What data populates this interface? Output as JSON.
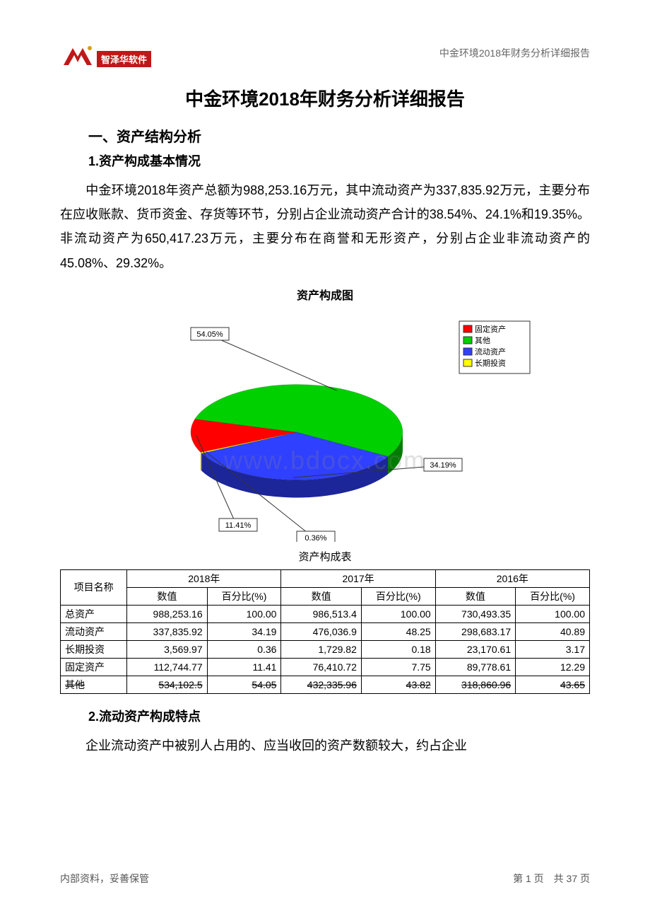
{
  "header": {
    "logo_text": "智泽华软件",
    "logo_colors": {
      "red": "#c01818",
      "gold": "#d4a017"
    },
    "right_text": "中金环境2018年财务分析详细报告"
  },
  "doc_title": "中金环境2018年财务分析详细报告",
  "section1": {
    "h1": "一、资产结构分析",
    "h2_1": "1.资产构成基本情况",
    "para1": "中金环境2018年资产总额为988,253.16万元，其中流动资产为337,835.92万元，主要分布在应收账款、货币资金、存货等环节，分别占企业流动资产合计的38.54%、24.1%和19.35%。非流动资产为650,417.23万元，主要分布在商誉和无形资产，分别占企业非流动资产的45.08%、29.32%。",
    "h2_2": "2.流动资产构成特点",
    "para2": "企业流动资产中被别人占用的、应当收回的资产数额较大，约占企业"
  },
  "chart": {
    "title": "资产构成图",
    "type": "pie",
    "background_color": "#ffffff",
    "legend_border": "#333333",
    "slices": [
      {
        "label": "固定资产",
        "value": 11.41,
        "color": "#ff0000",
        "callout": "11.41%"
      },
      {
        "label": "其他",
        "value": 54.05,
        "color": "#00d000",
        "callout": "54.05%"
      },
      {
        "label": "流动资产",
        "value": 34.19,
        "color": "#3040ff",
        "callout": "34.19%"
      },
      {
        "label": "长期投资",
        "value": 0.36,
        "color": "#ffff00",
        "callout": "0.36%"
      }
    ],
    "legend_items": [
      {
        "label": "固定资产",
        "color": "#ff0000"
      },
      {
        "label": "其他",
        "color": "#00d000"
      },
      {
        "label": "流动资产",
        "color": "#3040ff"
      },
      {
        "label": "长期投资",
        "color": "#ffff00"
      }
    ],
    "tilt": 0.45,
    "radius": 150,
    "thickness": 25,
    "label_box": {
      "fill": "#ffffff",
      "stroke": "#333333"
    }
  },
  "table": {
    "caption": "资产构成表",
    "year_headers": [
      "2018年",
      "2017年",
      "2016年"
    ],
    "sub_headers": [
      "数值",
      "百分比(%)"
    ],
    "row_header": "项目名称",
    "rows": [
      {
        "name": "总资产",
        "cells": [
          "988,253.16",
          "100.00",
          "986,513.4",
          "100.00",
          "730,493.35",
          "100.00"
        ],
        "strike": false
      },
      {
        "name": "流动资产",
        "cells": [
          "337,835.92",
          "34.19",
          "476,036.9",
          "48.25",
          "298,683.17",
          "40.89"
        ],
        "strike": false
      },
      {
        "name": "长期投资",
        "cells": [
          "3,569.97",
          "0.36",
          "1,729.82",
          "0.18",
          "23,170.61",
          "3.17"
        ],
        "strike": false
      },
      {
        "name": "固定资产",
        "cells": [
          "112,744.77",
          "11.41",
          "76,410.72",
          "7.75",
          "89,778.61",
          "12.29"
        ],
        "strike": false
      },
      {
        "name": "其他",
        "cells": [
          "534,102.5",
          "54.05",
          "432,335.96",
          "43.82",
          "318,860.96",
          "43.65"
        ],
        "strike": true
      }
    ]
  },
  "watermark": "www.bdocx.com",
  "footer": {
    "left": "内部资料，妥善保管",
    "right": "第 1 页　共 37 页"
  }
}
